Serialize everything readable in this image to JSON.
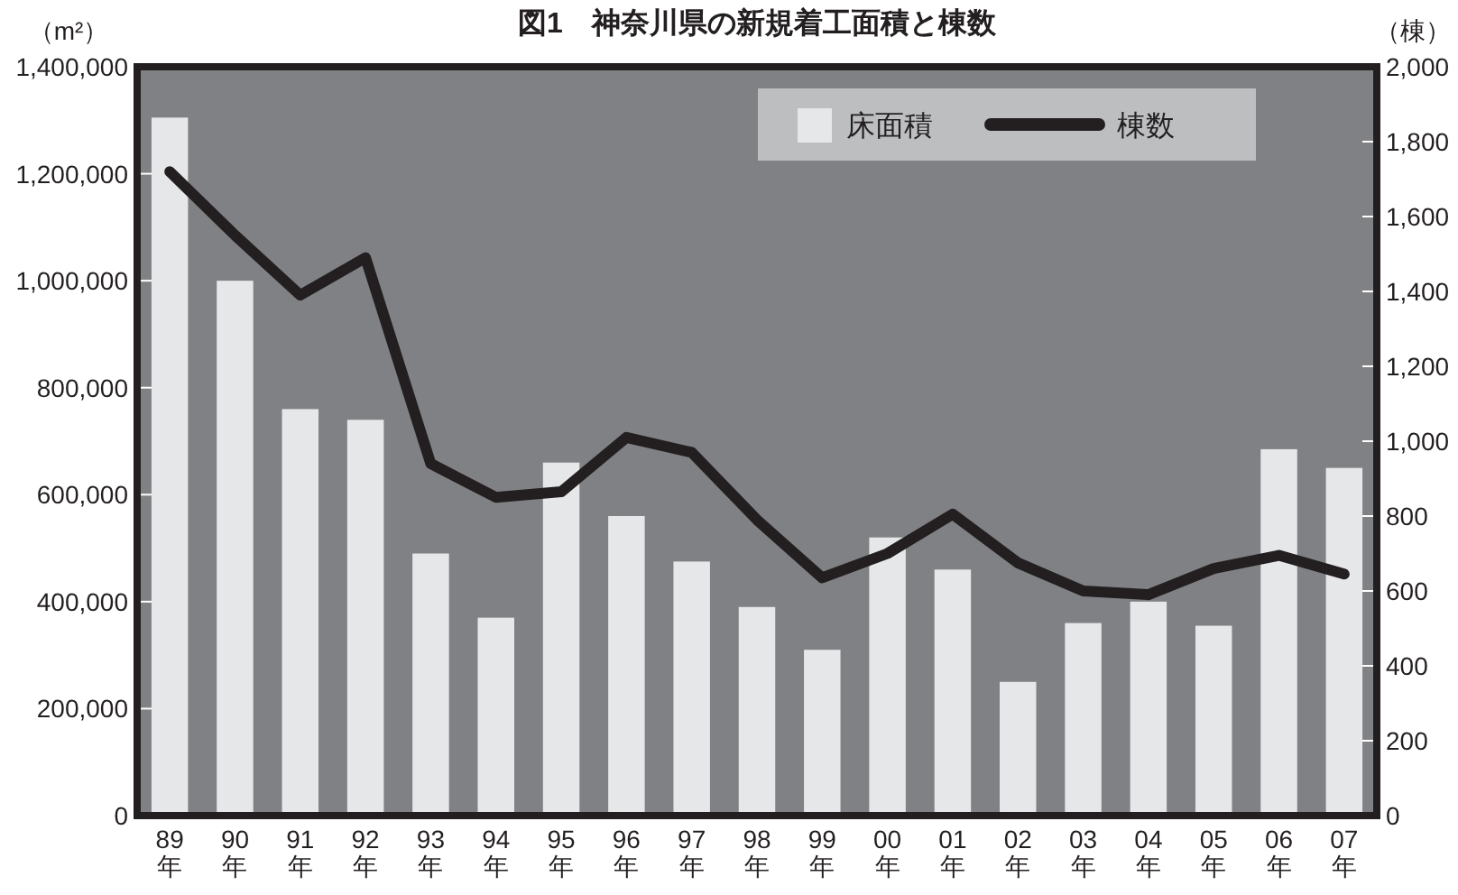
{
  "chart_data": {
    "type": "bar",
    "title": "図1　神奈川県の新規着工面積と棟数",
    "ylabel": "（m²）",
    "y2label": "（棟）",
    "categories": [
      "89\n年",
      "90\n年",
      "91\n年",
      "92\n年",
      "93\n年",
      "94\n年",
      "95\n年",
      "96\n年",
      "97\n年",
      "98\n年",
      "99\n年",
      "00\n年",
      "01\n年",
      "02\n年",
      "03\n年",
      "04\n年",
      "05\n年",
      "06\n年",
      "07\n年"
    ],
    "series": [
      {
        "name": "床面積",
        "color": "#e6e7e8",
        "values": [
          1305000,
          1000000,
          760000,
          740000,
          490000,
          370000,
          660000,
          560000,
          475000,
          390000,
          310000,
          520000,
          460000,
          250000,
          360000,
          400000,
          355000,
          685000,
          650000
        ]
      },
      {
        "name": "棟数",
        "type": "line",
        "axis": "y2",
        "color": "#231f20",
        "values": [
          1720,
          1550,
          1390,
          1490,
          940,
          850,
          865,
          1010,
          970,
          790,
          635,
          700,
          805,
          675,
          600,
          590,
          660,
          695,
          645
        ]
      }
    ],
    "ylim": [
      0,
      1400000
    ],
    "yticks": [
      {
        "value": 0,
        "label": "0"
      },
      {
        "value": 200000,
        "label": "200,000"
      },
      {
        "value": 400000,
        "label": "400,000"
      },
      {
        "value": 600000,
        "label": "600,000"
      },
      {
        "value": 800000,
        "label": "800,000"
      },
      {
        "value": 1000000,
        "label": "1,000,000"
      },
      {
        "value": 1200000,
        "label": "1,200,000"
      },
      {
        "value": 1400000,
        "label": "1,400,000"
      }
    ],
    "y2lim": [
      0,
      2000
    ],
    "y2ticks": [
      0,
      200,
      400,
      600,
      800,
      {
        "value": 1000,
        "label": "1,000"
      },
      {
        "value": 1200,
        "label": "1,200"
      },
      {
        "value": 1400,
        "label": "1,400"
      },
      {
        "value": 1600,
        "label": "1,600"
      },
      {
        "value": 1800,
        "label": "1,800"
      },
      {
        "value": 2000,
        "label": "2,000"
      }
    ],
    "legend": "top right",
    "grid": false,
    "marker": "none",
    "line_style": "solid"
  }
}
